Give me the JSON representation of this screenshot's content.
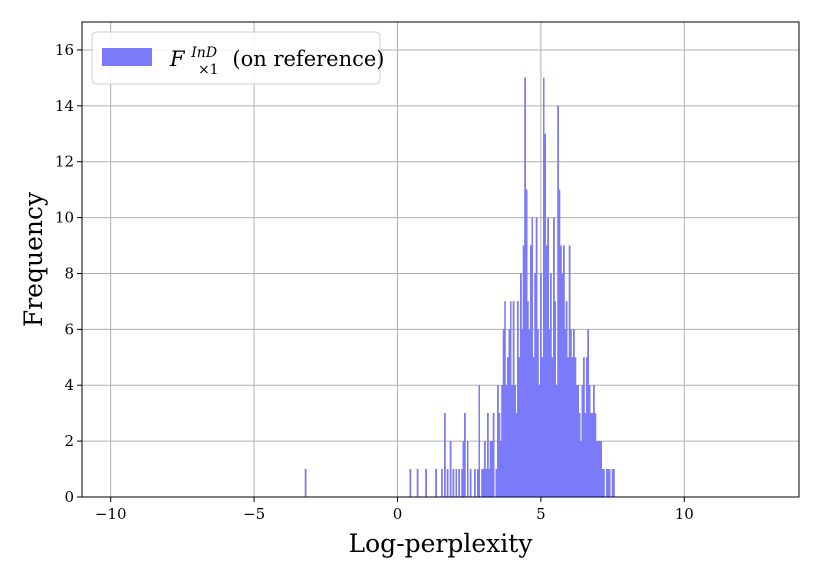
{
  "chart_data": {
    "type": "bar",
    "subtype": "histogram",
    "xlabel": "Log-perplexity",
    "ylabel": "Frequency",
    "xlim": [
      -11,
      14
    ],
    "ylim": [
      0,
      17
    ],
    "xticks": [
      -10,
      -5,
      0,
      5,
      10
    ],
    "xtick_labels": [
      "−10",
      "−5",
      "0",
      "5",
      "10"
    ],
    "yticks": [
      0,
      2,
      4,
      6,
      8,
      10,
      12,
      14,
      16
    ],
    "grid": true,
    "legend_position": "top-left",
    "bin_width": 0.05,
    "series": [
      {
        "name": "F×1InD (on reference)",
        "legend": {
          "base": "F",
          "subscript": "×1",
          "superscript": "InD",
          "suffix": " (on reference)"
        },
        "color": "#7b7bfa",
        "bins": [
          [
            -3.2,
            1
          ],
          [
            0.45,
            1
          ],
          [
            0.7,
            1
          ],
          [
            1.0,
            1
          ],
          [
            1.35,
            1
          ],
          [
            1.55,
            1
          ],
          [
            1.65,
            3
          ],
          [
            1.75,
            1
          ],
          [
            1.85,
            2
          ],
          [
            1.95,
            1
          ],
          [
            2.05,
            1
          ],
          [
            2.15,
            1
          ],
          [
            2.25,
            1
          ],
          [
            2.3,
            2
          ],
          [
            2.35,
            3
          ],
          [
            2.45,
            2
          ],
          [
            2.55,
            1
          ],
          [
            2.7,
            1
          ],
          [
            2.8,
            1
          ],
          [
            2.85,
            4
          ],
          [
            2.95,
            1
          ],
          [
            3.0,
            1
          ],
          [
            3.05,
            2
          ],
          [
            3.1,
            1
          ],
          [
            3.15,
            3
          ],
          [
            3.2,
            1
          ],
          [
            3.25,
            2
          ],
          [
            3.3,
            2
          ],
          [
            3.35,
            3
          ],
          [
            3.45,
            1
          ],
          [
            3.5,
            4
          ],
          [
            3.55,
            3
          ],
          [
            3.6,
            2
          ],
          [
            3.65,
            4
          ],
          [
            3.7,
            6
          ],
          [
            3.75,
            7
          ],
          [
            3.8,
            4
          ],
          [
            3.85,
            5
          ],
          [
            3.9,
            6
          ],
          [
            3.95,
            7
          ],
          [
            4.0,
            4
          ],
          [
            4.05,
            7
          ],
          [
            4.1,
            4
          ],
          [
            4.15,
            3
          ],
          [
            4.2,
            7
          ],
          [
            4.25,
            5
          ],
          [
            4.3,
            8
          ],
          [
            4.35,
            6
          ],
          [
            4.4,
            9
          ],
          [
            4.45,
            15
          ],
          [
            4.5,
            11
          ],
          [
            4.55,
            7
          ],
          [
            4.6,
            6
          ],
          [
            4.65,
            9
          ],
          [
            4.7,
            10
          ],
          [
            4.75,
            5
          ],
          [
            4.8,
            8
          ],
          [
            4.85,
            10
          ],
          [
            4.9,
            6
          ],
          [
            4.95,
            4
          ],
          [
            5.0,
            8
          ],
          [
            5.05,
            5
          ],
          [
            5.1,
            15
          ],
          [
            5.15,
            13
          ],
          [
            5.2,
            9
          ],
          [
            5.25,
            10
          ],
          [
            5.3,
            6
          ],
          [
            5.35,
            8
          ],
          [
            5.4,
            5
          ],
          [
            5.45,
            10
          ],
          [
            5.5,
            7
          ],
          [
            5.55,
            4
          ],
          [
            5.6,
            14
          ],
          [
            5.65,
            11
          ],
          [
            5.7,
            9
          ],
          [
            5.75,
            8
          ],
          [
            5.8,
            9
          ],
          [
            5.85,
            6
          ],
          [
            5.9,
            7
          ],
          [
            5.95,
            5
          ],
          [
            6.0,
            9
          ],
          [
            6.05,
            6
          ],
          [
            6.1,
            5
          ],
          [
            6.15,
            6
          ],
          [
            6.2,
            5
          ],
          [
            6.25,
            4
          ],
          [
            6.3,
            4
          ],
          [
            6.35,
            3
          ],
          [
            6.4,
            2
          ],
          [
            6.45,
            4
          ],
          [
            6.5,
            5
          ],
          [
            6.55,
            3
          ],
          [
            6.6,
            5
          ],
          [
            6.65,
            6
          ],
          [
            6.7,
            4
          ],
          [
            6.75,
            3
          ],
          [
            6.8,
            3
          ],
          [
            6.85,
            4
          ],
          [
            6.9,
            3
          ],
          [
            6.95,
            2
          ],
          [
            7.0,
            2
          ],
          [
            7.05,
            2
          ],
          [
            7.1,
            2
          ],
          [
            7.15,
            1
          ],
          [
            7.2,
            1
          ],
          [
            7.3,
            1
          ],
          [
            7.35,
            1
          ],
          [
            7.4,
            1
          ],
          [
            7.5,
            1
          ],
          [
            7.55,
            1
          ]
        ]
      }
    ]
  }
}
